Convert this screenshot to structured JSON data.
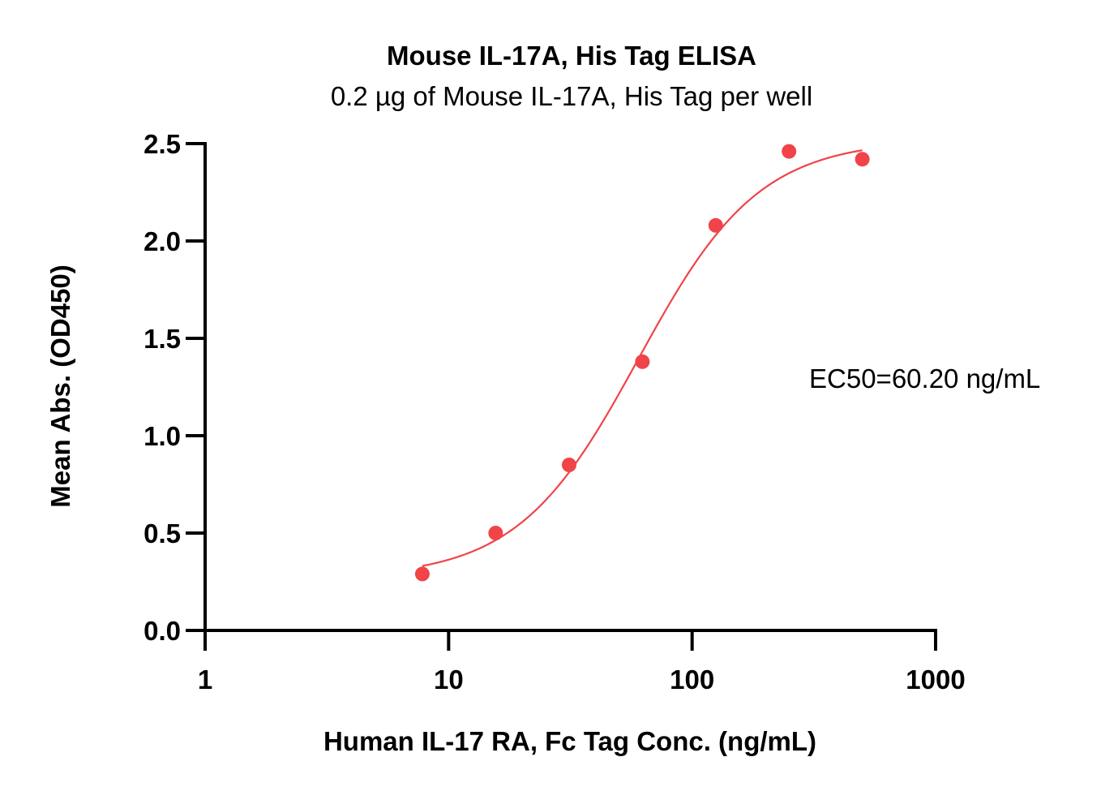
{
  "chart_data": {
    "type": "scatter",
    "title": "Mouse IL-17A, His Tag ELISA",
    "subtitle": "0.2 µg of Mouse IL-17A, His Tag per well",
    "xlabel": "Human IL-17 RA, Fc Tag Conc. (ng/mL)",
    "ylabel": "Mean Abs. (OD450)",
    "x_scale": "log",
    "xlim": [
      1,
      1000
    ],
    "ylim": [
      0,
      2.5
    ],
    "x_ticks": [
      1,
      10,
      100,
      1000
    ],
    "x_tick_labels": [
      "1",
      "10",
      "100",
      "1000"
    ],
    "y_ticks": [
      0,
      0.5,
      1,
      1.5,
      2,
      2.5
    ],
    "y_tick_labels": [
      "0.0",
      "0.5",
      "1.0",
      "1.5",
      "2.0",
      "2.5"
    ],
    "grid": false,
    "series": [
      {
        "x": [
          7.8,
          15.6,
          31.25,
          62.5,
          125,
          250,
          500
        ],
        "y": [
          0.29,
          0.5,
          0.85,
          1.38,
          2.08,
          2.46,
          2.42
        ]
      }
    ],
    "fit_curve": {
      "model": "4PL",
      "bottom": 0.27,
      "top": 2.52,
      "ec50": 60.2,
      "hill": 1.75,
      "x_range": [
        7.8,
        500
      ]
    },
    "annotations": [
      "EC50=60.20 ng/mL"
    ],
    "colors": {
      "points": "#f04448",
      "curve": "#f04448",
      "axes": "#000000"
    }
  }
}
